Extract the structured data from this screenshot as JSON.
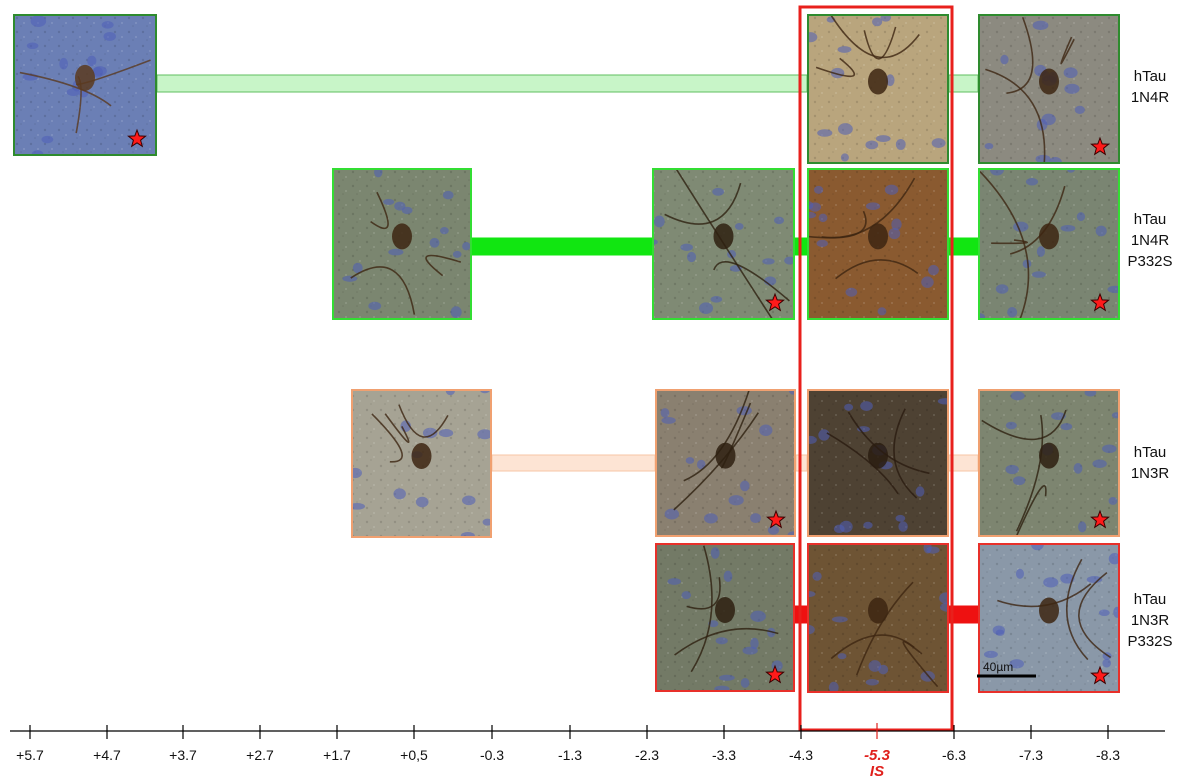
{
  "rows": [
    {
      "label_lines": [
        "hTau",
        "1N4R"
      ],
      "color": "#2e8b2e",
      "bar_color": "#c8f5c8",
      "bar_stroke": "#5fbf5f",
      "tiles": [
        {
          "tissue": "#6b7fb5",
          "stain": "#5a3a1f",
          "star": true
        },
        {
          "tissue": "#b9a57d",
          "stain": "#3d2612",
          "star": false
        },
        {
          "tissue": "#8c8a80",
          "stain": "#3d2612",
          "star": true
        }
      ]
    },
    {
      "label_lines": [
        "hTau",
        "1N4R",
        "P332S"
      ],
      "color": "#33dd33",
      "bar_color": "#11e611",
      "bar_stroke": "#11e611",
      "tiles": [
        {
          "tissue": "#7b8670",
          "stain": "#3d2612",
          "star": false
        },
        {
          "tissue": "#7f8a74",
          "stain": "#2e2010",
          "star": true
        },
        {
          "tissue": "#8a5a30",
          "stain": "#3d2612",
          "star": false
        },
        {
          "tissue": "#7a8572",
          "stain": "#3d2612",
          "star": true
        }
      ]
    },
    {
      "label_lines": [
        "hTau",
        "1N3R"
      ],
      "color": "#f0a070",
      "bar_color": "#fde4d4",
      "bar_stroke": "#f7c6a6",
      "tiles": [
        {
          "tissue": "#a6a394",
          "stain": "#3d2612",
          "star": false
        },
        {
          "tissue": "#8a8070",
          "stain": "#2e2010",
          "star": true
        },
        {
          "tissue": "#4e4233",
          "stain": "#2a1c10",
          "star": false
        },
        {
          "tissue": "#7d8570",
          "stain": "#2e2010",
          "star": true
        }
      ]
    },
    {
      "label_lines": [
        "hTau",
        "1N3R",
        "P332S"
      ],
      "color": "#e8302a",
      "bar_color": "#ee1111",
      "bar_stroke": "#ee1111",
      "tiles": [
        {
          "tissue": "#737a66",
          "stain": "#2e2010",
          "star": true
        },
        {
          "tissue": "#6e5434",
          "stain": "#3d2612",
          "star": false
        },
        {
          "tissue": "#8a98a8",
          "stain": "#3d2612",
          "star": true
        }
      ]
    }
  ],
  "axis": {
    "ticks": [
      "+5.7",
      "+4.7",
      "+3.7",
      "+2.7",
      "+1.7",
      "+0,5",
      "-0.3",
      "-1.3",
      "-2.3",
      "-3.3",
      "-4.3",
      "-5.3",
      "-6.3",
      "-7.3",
      "-8.3"
    ],
    "highlight_tick": "-5.3",
    "highlight_sublabel": "IS",
    "highlight_color": "#e0201c"
  },
  "scale_bar": {
    "label": "40µm"
  },
  "highlight_box": {
    "color": "#e8201c"
  }
}
